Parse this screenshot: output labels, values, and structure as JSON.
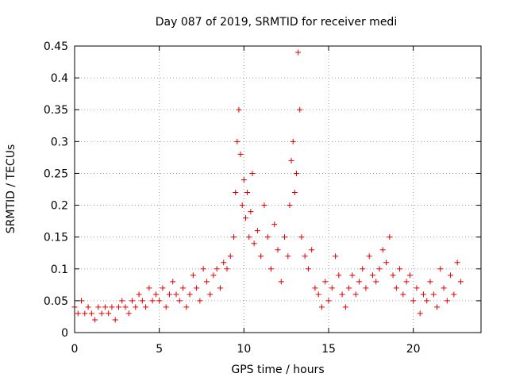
{
  "chart_data": {
    "type": "scatter",
    "title": "Day 087 of 2019, SRMTID for receiver medi",
    "xlabel": "GPS time / hours",
    "ylabel": "SRMTID / TECUs",
    "xlim": [
      0,
      24
    ],
    "ylim": [
      0,
      0.45
    ],
    "x_ticks": [
      0,
      5,
      10,
      15,
      20
    ],
    "x_tick_labels": [
      "0",
      "5",
      "10",
      "15",
      "20"
    ],
    "y_ticks": [
      0,
      0.05,
      0.1,
      0.15,
      0.2,
      0.25,
      0.3,
      0.35,
      0.4,
      0.45
    ],
    "y_tick_labels": [
      "0",
      "0.05",
      "0.1",
      "0.15",
      "0.2",
      "0.25",
      "0.3",
      "0.35",
      "0.4",
      "0.45"
    ],
    "grid": true,
    "marker": "plus",
    "color": "#e00000",
    "series": [
      {
        "name": "SRMTID",
        "x": [
          0.0,
          0.2,
          0.4,
          0.6,
          0.8,
          1.0,
          1.2,
          1.4,
          1.6,
          1.8,
          2.0,
          2.2,
          2.4,
          2.6,
          2.8,
          3.0,
          3.2,
          3.4,
          3.6,
          3.8,
          4.0,
          4.2,
          4.4,
          4.6,
          4.8,
          5.0,
          5.2,
          5.4,
          5.6,
          5.8,
          6.0,
          6.2,
          6.4,
          6.6,
          6.8,
          7.0,
          7.2,
          7.4,
          7.6,
          7.8,
          8.0,
          8.2,
          8.4,
          8.6,
          8.8,
          9.0,
          9.2,
          9.4,
          9.5,
          9.6,
          9.7,
          9.8,
          9.9,
          10.0,
          10.1,
          10.2,
          10.3,
          10.4,
          10.5,
          10.6,
          10.8,
          11.0,
          11.2,
          11.4,
          11.6,
          11.8,
          12.0,
          12.2,
          12.4,
          12.6,
          12.7,
          12.8,
          12.9,
          13.0,
          13.1,
          13.2,
          13.3,
          13.4,
          13.6,
          13.8,
          14.0,
          14.2,
          14.4,
          14.6,
          14.8,
          15.0,
          15.2,
          15.4,
          15.6,
          15.8,
          16.0,
          16.2,
          16.4,
          16.6,
          16.8,
          17.0,
          17.2,
          17.4,
          17.6,
          17.8,
          18.0,
          18.2,
          18.4,
          18.6,
          18.8,
          19.0,
          19.2,
          19.4,
          19.6,
          19.8,
          20.0,
          20.2,
          20.4,
          20.6,
          20.8,
          21.0,
          21.2,
          21.4,
          21.6,
          21.8,
          22.0,
          22.2,
          22.4,
          22.6,
          22.8
        ],
        "y": [
          0.04,
          0.03,
          0.05,
          0.03,
          0.04,
          0.03,
          0.02,
          0.04,
          0.03,
          0.04,
          0.03,
          0.04,
          0.02,
          0.04,
          0.05,
          0.04,
          0.03,
          0.05,
          0.04,
          0.06,
          0.05,
          0.04,
          0.07,
          0.05,
          0.06,
          0.05,
          0.07,
          0.04,
          0.06,
          0.08,
          0.06,
          0.05,
          0.07,
          0.04,
          0.06,
          0.09,
          0.07,
          0.05,
          0.1,
          0.08,
          0.06,
          0.09,
          0.1,
          0.07,
          0.11,
          0.1,
          0.12,
          0.15,
          0.22,
          0.3,
          0.35,
          0.28,
          0.2,
          0.24,
          0.18,
          0.22,
          0.15,
          0.19,
          0.25,
          0.14,
          0.16,
          0.12,
          0.2,
          0.15,
          0.1,
          0.17,
          0.13,
          0.08,
          0.15,
          0.12,
          0.2,
          0.27,
          0.3,
          0.22,
          0.25,
          0.44,
          0.35,
          0.15,
          0.12,
          0.1,
          0.13,
          0.07,
          0.06,
          0.04,
          0.08,
          0.05,
          0.07,
          0.12,
          0.09,
          0.06,
          0.04,
          0.07,
          0.09,
          0.06,
          0.08,
          0.1,
          0.07,
          0.12,
          0.09,
          0.08,
          0.1,
          0.13,
          0.11,
          0.15,
          0.09,
          0.07,
          0.1,
          0.06,
          0.08,
          0.09,
          0.05,
          0.07,
          0.03,
          0.06,
          0.05,
          0.08,
          0.06,
          0.04,
          0.1,
          0.07,
          0.05,
          0.09,
          0.06,
          0.11,
          0.08
        ]
      }
    ]
  }
}
